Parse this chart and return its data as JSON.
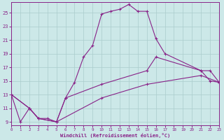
{
  "xlabel": "Windchill (Refroidissement éolien,°C)",
  "background_color": "#cce8e8",
  "line_color": "#882288",
  "grid_color": "#aacccc",
  "xlim": [
    0,
    23
  ],
  "ylim": [
    8.5,
    26.5
  ],
  "yticks": [
    9,
    11,
    13,
    15,
    17,
    19,
    21,
    23,
    25
  ],
  "xticks": [
    0,
    1,
    2,
    3,
    4,
    5,
    6,
    7,
    8,
    9,
    10,
    11,
    12,
    13,
    14,
    15,
    16,
    17,
    18,
    19,
    20,
    21,
    22,
    23
  ],
  "line1_x": [
    0,
    1,
    2,
    3,
    4,
    5,
    6,
    7,
    8,
    9,
    10,
    11,
    12,
    13,
    14,
    15,
    16,
    17,
    21,
    22,
    23
  ],
  "line1_y": [
    13,
    9,
    11,
    9.5,
    9.5,
    9,
    12.5,
    14.8,
    18.5,
    20.2,
    24.8,
    25.2,
    25.5,
    26.2,
    25.2,
    25.2,
    21.2,
    19.0,
    16.5,
    15.0,
    14.8
  ],
  "line2_x": [
    0,
    2,
    3,
    5,
    6,
    10,
    15,
    16,
    21,
    22,
    23
  ],
  "line2_y": [
    13,
    11,
    9.5,
    9,
    12.5,
    14.5,
    16.5,
    18.5,
    16.5,
    16.5,
    14.8
  ],
  "line3_x": [
    0,
    2,
    3,
    5,
    10,
    15,
    21,
    23
  ],
  "line3_y": [
    13,
    11,
    9.5,
    9,
    12.5,
    14.5,
    15.8,
    14.8
  ]
}
